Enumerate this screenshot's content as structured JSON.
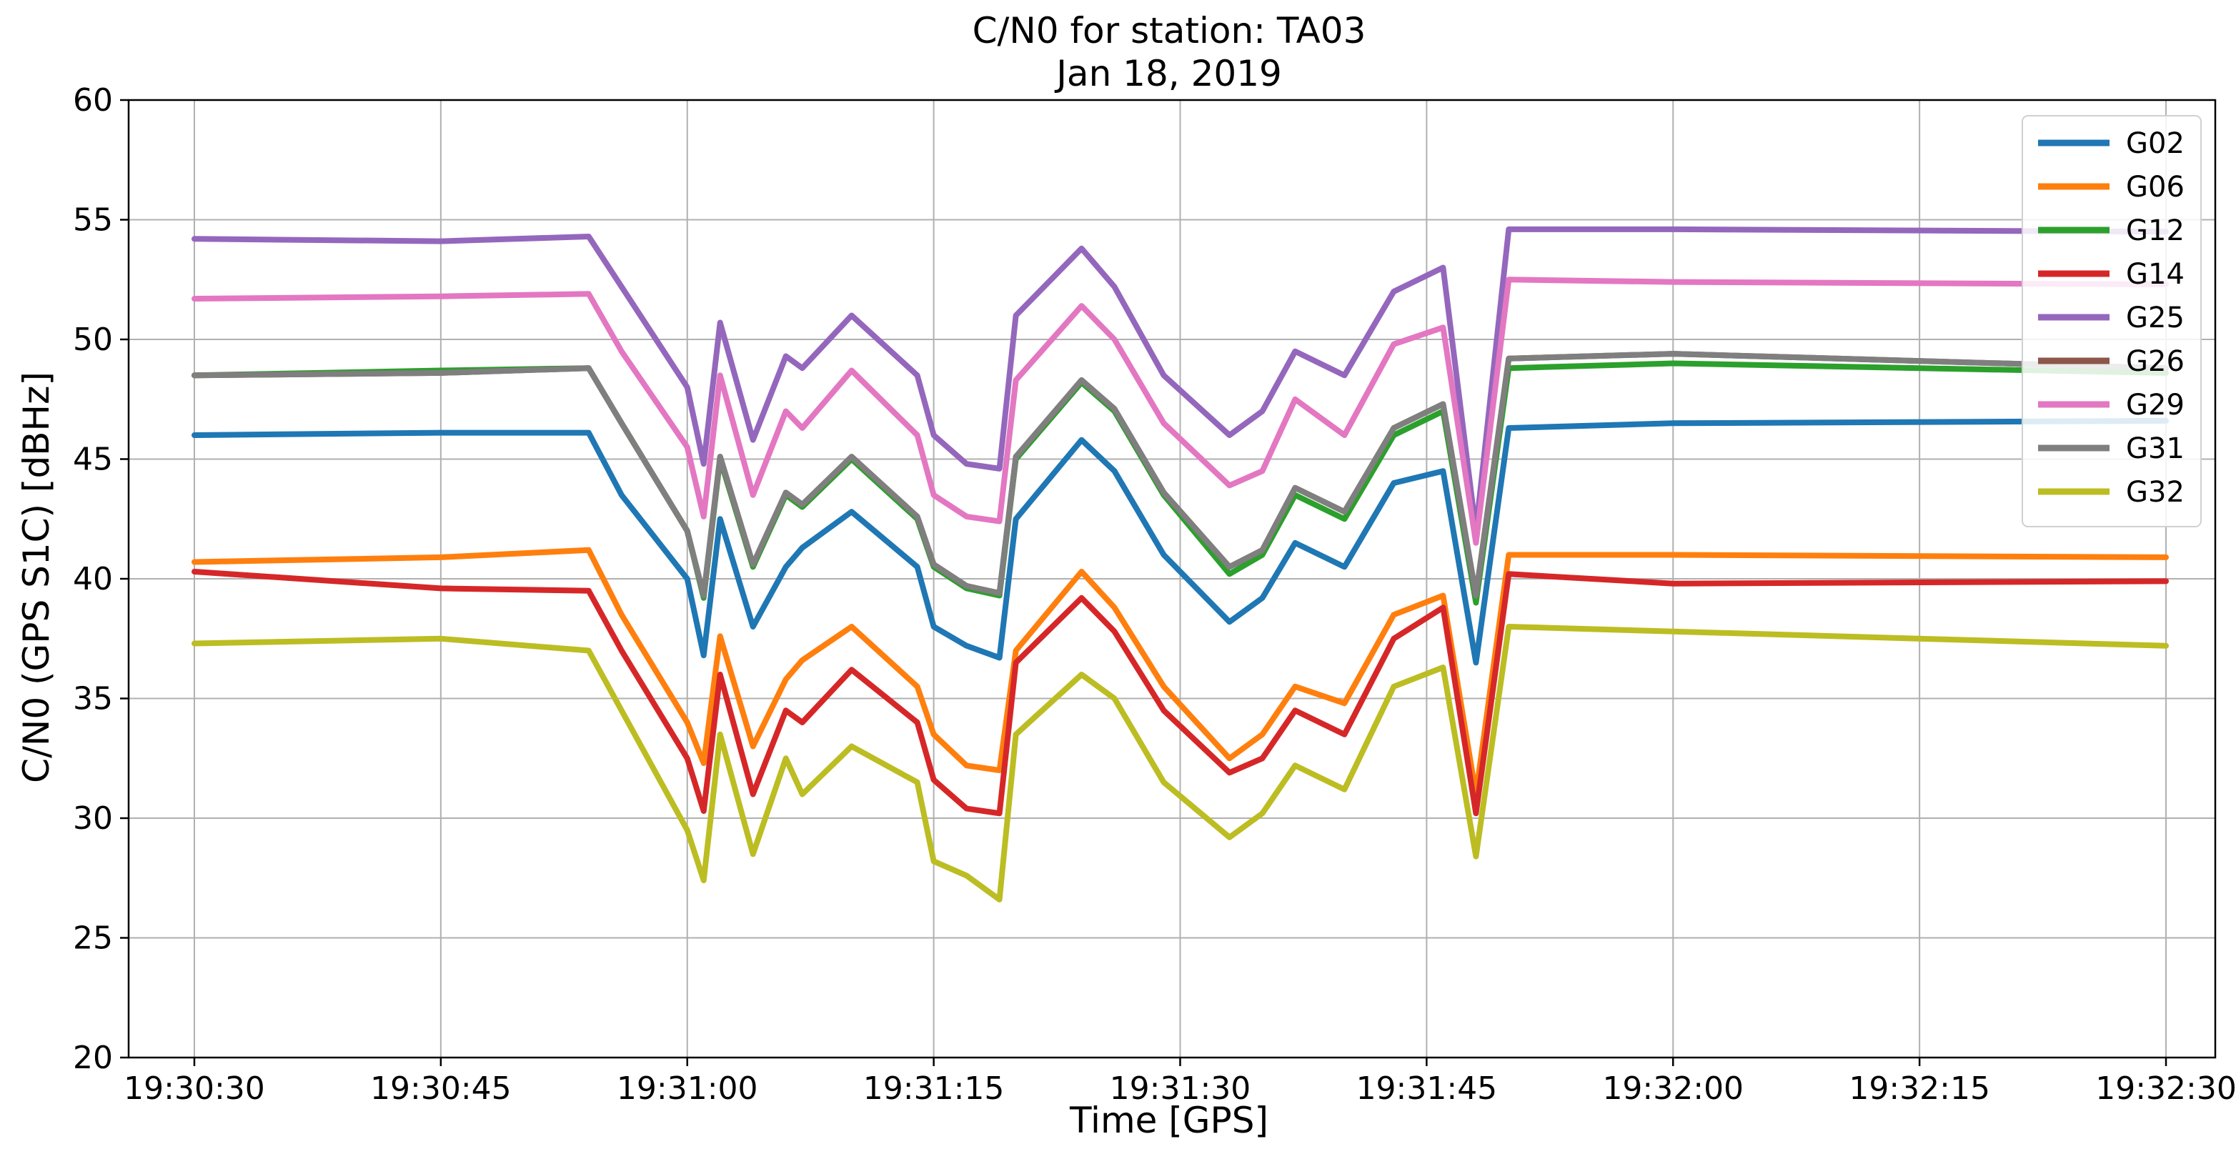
{
  "chart_data": {
    "type": "line",
    "title": "C/N0 for station: TA03",
    "subtitle": "Jan 18, 2019",
    "xlabel": "Time [GPS]",
    "ylabel": "C/N0 (GPS S1C) [dBHz]",
    "xlim": [
      "19:30:26",
      "19:32:33"
    ],
    "ylim": [
      20,
      60
    ],
    "grid": true,
    "legend_position": "top-right",
    "x_ticks": [
      "19:30:30",
      "19:30:45",
      "19:31:00",
      "19:31:15",
      "19:31:30",
      "19:31:45",
      "19:32:00",
      "19:32:15",
      "19:32:30"
    ],
    "y_ticks": [
      20,
      25,
      30,
      35,
      40,
      45,
      50,
      55,
      60
    ],
    "x": [
      "19:30:30",
      "19:30:45",
      "19:30:54",
      "19:30:56",
      "19:31:00",
      "19:31:01",
      "19:31:02",
      "19:31:04",
      "19:31:06",
      "19:31:07",
      "19:31:10",
      "19:31:14",
      "19:31:15",
      "19:31:17",
      "19:31:19",
      "19:31:20",
      "19:31:24",
      "19:31:26",
      "19:31:29",
      "19:31:33",
      "19:31:35",
      "19:31:37",
      "19:31:40",
      "19:31:43",
      "19:31:46",
      "19:31:48",
      "19:31:50",
      "19:32:00",
      "19:32:30"
    ],
    "series": [
      {
        "name": "G02",
        "color": "#1f77b4",
        "values": [
          46,
          46.1,
          46.1,
          43.5,
          40,
          36.8,
          42.5,
          38,
          40.5,
          41.3,
          42.8,
          40.5,
          38,
          37.2,
          36.7,
          42.5,
          45.8,
          44.5,
          41,
          38.2,
          39.2,
          41.5,
          40.5,
          44,
          44.5,
          36.5,
          46.3,
          46.5,
          46.6
        ]
      },
      {
        "name": "G06",
        "color": "#ff7f0e",
        "values": [
          40.7,
          40.9,
          41.2,
          38.5,
          34,
          32.3,
          37.6,
          33,
          35.8,
          36.6,
          38,
          35.5,
          33.5,
          32.2,
          32,
          37,
          40.3,
          38.8,
          35.5,
          32.5,
          33.5,
          35.5,
          34.8,
          38.5,
          39.3,
          31,
          41,
          41,
          40.9
        ]
      },
      {
        "name": "G12",
        "color": "#2ca02c",
        "values": [
          48.5,
          48.7,
          48.8,
          46.5,
          42,
          39.2,
          45,
          40.5,
          43.5,
          43,
          45,
          42.5,
          40.5,
          39.6,
          39.3,
          45,
          48.2,
          47,
          43.5,
          40.2,
          41,
          43.5,
          42.5,
          46,
          47,
          39,
          48.8,
          49,
          48.6
        ]
      },
      {
        "name": "G14",
        "color": "#d62728",
        "values": [
          40.3,
          39.6,
          39.5,
          37,
          32.5,
          30.3,
          36,
          31,
          34.5,
          34,
          36.2,
          34,
          31.6,
          30.4,
          30.2,
          36.5,
          39.2,
          37.8,
          34.5,
          31.9,
          32.5,
          34.5,
          33.5,
          37.5,
          38.8,
          30.2,
          40.2,
          39.8,
          39.9
        ]
      },
      {
        "name": "G25",
        "color": "#9467bd",
        "values": [
          54.2,
          54.1,
          54.3,
          52.2,
          48,
          44.8,
          50.7,
          45.8,
          49.3,
          48.8,
          51,
          48.5,
          46,
          44.8,
          44.6,
          51,
          53.8,
          52.2,
          48.5,
          46,
          47,
          49.5,
          48.5,
          52,
          53,
          42,
          54.6,
          54.6,
          54.5
        ]
      },
      {
        "name": "G26",
        "color": "#8c564b",
        "values": [
          48.5,
          48.6,
          48.8,
          46.5,
          42,
          39.3,
          45.1,
          40.6,
          43.6,
          43.1,
          45.1,
          42.6,
          40.6,
          39.7,
          39.4,
          45.1,
          48.3,
          47.1,
          43.6,
          40.5,
          41.2,
          43.8,
          42.8,
          46.3,
          47.3,
          39.3,
          49.2,
          49.4,
          48.8
        ]
      },
      {
        "name": "G29",
        "color": "#e377c2",
        "values": [
          51.7,
          51.8,
          51.9,
          49.5,
          45.5,
          42.6,
          48.5,
          43.5,
          47,
          46.3,
          48.7,
          46,
          43.5,
          42.6,
          42.4,
          48.3,
          51.4,
          50,
          46.5,
          43.9,
          44.5,
          47.5,
          46,
          49.8,
          50.5,
          41.5,
          52.5,
          52.4,
          52.3
        ]
      },
      {
        "name": "G31",
        "color": "#7f7f7f",
        "values": [
          48.5,
          48.6,
          48.8,
          46.5,
          42,
          39.3,
          45.1,
          40.6,
          43.6,
          43.1,
          45.1,
          42.6,
          40.6,
          39.7,
          39.4,
          45.1,
          48.3,
          47.1,
          43.6,
          40.5,
          41.2,
          43.8,
          42.8,
          46.3,
          47.3,
          39.3,
          49.2,
          49.4,
          48.8
        ]
      },
      {
        "name": "G32",
        "color": "#bcbd22",
        "values": [
          37.3,
          37.5,
          37,
          34.5,
          29.5,
          27.4,
          33.5,
          28.5,
          32.5,
          31,
          33,
          31.5,
          28.2,
          27.6,
          26.6,
          33.5,
          36,
          35,
          31.5,
          29.2,
          30.2,
          32.2,
          31.2,
          35.5,
          36.3,
          28.4,
          38,
          37.8,
          37.2
        ]
      }
    ]
  }
}
